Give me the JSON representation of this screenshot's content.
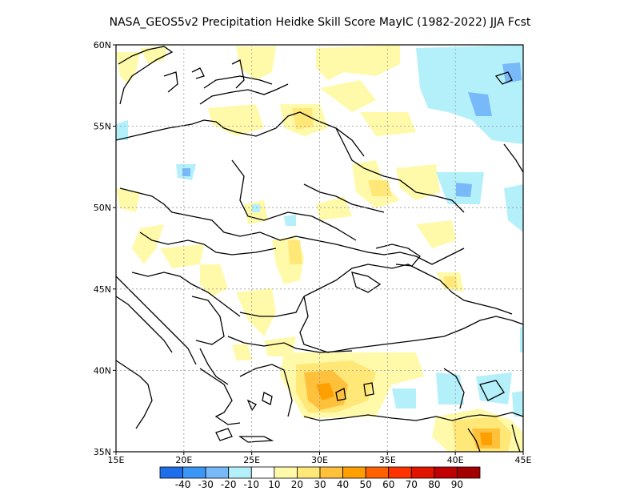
{
  "title": "NASA_GEOS5v2  Precipitation Heidke Skill Score MayIC (1982-2022) JJA Fcst",
  "map": {
    "lon_range": [
      15,
      45
    ],
    "lat_range": [
      35,
      60
    ],
    "lon_ticks": [
      {
        "value": 15,
        "label": "15E"
      },
      {
        "value": 20,
        "label": "20E"
      },
      {
        "value": 25,
        "label": "25E"
      },
      {
        "value": 30,
        "label": "30E"
      },
      {
        "value": 35,
        "label": "35E"
      },
      {
        "value": 40,
        "label": "40E"
      },
      {
        "value": 45,
        "label": "45E"
      }
    ],
    "lat_ticks": [
      {
        "value": 60,
        "label": "60N"
      },
      {
        "value": 55,
        "label": "55N"
      },
      {
        "value": 50,
        "label": "50N"
      },
      {
        "value": 45,
        "label": "45N"
      },
      {
        "value": 40,
        "label": "40N"
      },
      {
        "value": 35,
        "label": "35N"
      }
    ],
    "grid": "dotted"
  },
  "colorbar": {
    "colors": [
      "#1e6eeb",
      "#3c96f5",
      "#78b9fa",
      "#b4f0fa",
      "#ffffff",
      "#fffaaa",
      "#ffe878",
      "#ffc03c",
      "#ffa000",
      "#ff6000",
      "#ff3200",
      "#e11400",
      "#c00000",
      "#a50000"
    ],
    "labels": [
      "-40",
      "-30",
      "-20",
      "-10",
      "10",
      "20",
      "30",
      "40",
      "50",
      "60",
      "70",
      "80",
      "90"
    ]
  }
}
